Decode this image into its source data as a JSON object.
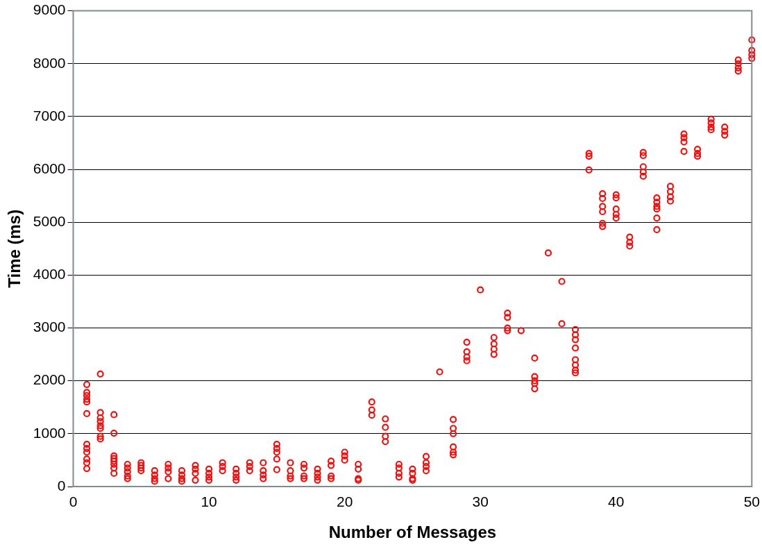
{
  "chart_data": {
    "type": "scatter",
    "xlabel": "Number of Messages",
    "ylabel": "Time (ms)",
    "xlim": [
      0,
      50
    ],
    "xticks": [
      0,
      10,
      20,
      30,
      40,
      50
    ],
    "ylim": [
      0,
      9000
    ],
    "yticks": [
      0,
      1000,
      2000,
      3000,
      4000,
      5000,
      6000,
      7000,
      8000,
      9000
    ],
    "grid": "y",
    "legend": false,
    "marker": "circle",
    "series": [
      {
        "color": "#ee1111",
        "x": [
          1,
          1,
          1,
          1,
          1,
          1,
          1,
          1,
          1,
          1,
          1,
          1,
          2,
          2,
          2,
          2,
          2,
          2,
          2,
          2,
          3,
          3,
          3,
          3,
          3,
          3,
          3,
          3,
          4,
          4,
          4,
          4,
          4,
          5,
          5,
          5,
          5,
          6,
          6,
          6,
          6,
          7,
          7,
          7,
          7,
          8,
          8,
          8,
          8,
          9,
          9,
          9,
          9,
          10,
          10,
          10,
          10,
          11,
          11,
          11,
          12,
          12,
          12,
          12,
          13,
          13,
          13,
          14,
          14,
          14,
          14,
          15,
          15,
          15,
          15,
          15,
          16,
          16,
          16,
          16,
          17,
          17,
          17,
          17,
          18,
          18,
          18,
          18,
          19,
          19,
          19,
          19,
          20,
          20,
          20,
          21,
          21,
          21,
          21,
          22,
          22,
          22,
          23,
          23,
          23,
          23,
          24,
          24,
          24,
          24,
          25,
          25,
          25,
          25,
          26,
          26,
          26,
          26,
          27,
          28,
          28,
          28,
          28,
          28,
          28,
          29,
          29,
          29,
          29,
          30,
          31,
          31,
          31,
          31,
          32,
          32,
          32,
          32,
          33,
          34,
          34,
          34,
          34,
          34,
          35,
          36,
          36,
          37,
          37,
          37,
          37,
          37,
          37,
          37,
          37,
          38,
          38,
          38,
          39,
          39,
          39,
          39,
          39,
          39,
          40,
          40,
          40,
          40,
          40,
          41,
          41,
          41,
          42,
          42,
          42,
          42,
          42,
          43,
          43,
          43,
          43,
          43,
          43,
          44,
          44,
          44,
          44,
          45,
          45,
          45,
          45,
          46,
          46,
          46,
          47,
          47,
          47,
          47,
          48,
          48,
          48,
          49,
          49,
          49,
          49,
          50,
          50,
          50,
          50
        ],
        "values": [
          1930,
          1780,
          1720,
          1650,
          1600,
          1380,
          800,
          720,
          650,
          520,
          450,
          340,
          2130,
          1400,
          1300,
          1230,
          1150,
          1100,
          950,
          900,
          1360,
          1010,
          580,
          530,
          480,
          420,
          350,
          250,
          420,
          350,
          280,
          200,
          150,
          450,
          400,
          350,
          300,
          300,
          220,
          150,
          100,
          420,
          350,
          280,
          150,
          300,
          220,
          150,
          100,
          400,
          330,
          250,
          120,
          330,
          250,
          180,
          120,
          450,
          380,
          300,
          330,
          250,
          180,
          120,
          450,
          380,
          300,
          450,
          300,
          220,
          150,
          800,
          720,
          650,
          520,
          320,
          450,
          300,
          200,
          150,
          420,
          350,
          200,
          150,
          330,
          250,
          180,
          120,
          480,
          400,
          200,
          150,
          650,
          580,
          500,
          420,
          330,
          150,
          120,
          1600,
          1450,
          1350,
          1280,
          1120,
          950,
          850,
          420,
          350,
          250,
          180,
          330,
          250,
          150,
          120,
          570,
          450,
          380,
          300,
          2170,
          1270,
          1100,
          1000,
          750,
          650,
          600,
          2730,
          2550,
          2450,
          2380,
          3720,
          2820,
          2700,
          2600,
          2500,
          3280,
          3200,
          3000,
          2950,
          2950,
          2430,
          2080,
          2000,
          1950,
          1850,
          4420,
          3880,
          3080,
          2970,
          2870,
          2780,
          2620,
          2400,
          2300,
          2200,
          2150,
          6300,
          6250,
          5990,
          5540,
          5450,
          5300,
          5200,
          4980,
          4920,
          5520,
          5460,
          5250,
          5150,
          5080,
          4720,
          4620,
          4550,
          6320,
          6260,
          6050,
          5950,
          5870,
          5460,
          5380,
          5300,
          5250,
          5080,
          4860,
          5680,
          5580,
          5480,
          5400,
          6670,
          6600,
          6520,
          6340,
          6380,
          6300,
          6250,
          6950,
          6880,
          6800,
          6750,
          6800,
          6720,
          6650,
          8070,
          8000,
          7920,
          7860,
          8450,
          8250,
          8170,
          8100
        ]
      }
    ]
  }
}
